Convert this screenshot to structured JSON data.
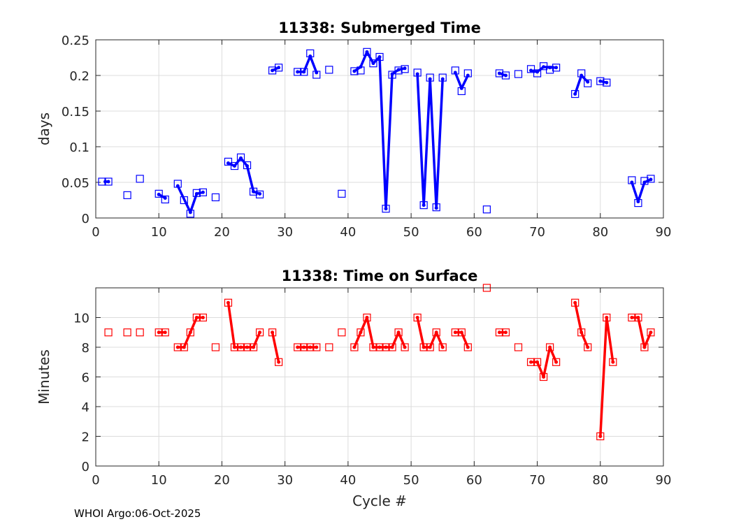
{
  "footer": "WHOI Argo:06-Oct-2025",
  "chart_data": [
    {
      "type": "line",
      "title": "11338: Submerged Time",
      "xlabel": "",
      "ylabel": "days",
      "xlim": [
        0,
        90
      ],
      "ylim": [
        0,
        0.25
      ],
      "xticks": [
        0,
        10,
        20,
        30,
        40,
        50,
        60,
        70,
        80,
        90
      ],
      "yticks": [
        0,
        0.05,
        0.1,
        0.15,
        0.2,
        0.25
      ],
      "ytick_labels": [
        "0",
        "0.05",
        "0.1",
        "0.15",
        "0.2",
        "0.25"
      ],
      "grid": true,
      "color": "#0000ff",
      "markers": [
        [
          1,
          0.051
        ],
        [
          2,
          0.051
        ],
        [
          5,
          0.032
        ],
        [
          7,
          0.055
        ],
        [
          10,
          0.034
        ],
        [
          11,
          0.026
        ],
        [
          13,
          0.048
        ],
        [
          14,
          0.025
        ],
        [
          15,
          0.006
        ],
        [
          16,
          0.035
        ],
        [
          17,
          0.036
        ],
        [
          19,
          0.029
        ],
        [
          21,
          0.079
        ],
        [
          22,
          0.073
        ],
        [
          23,
          0.085
        ],
        [
          24,
          0.074
        ],
        [
          25,
          0.037
        ],
        [
          26,
          0.033
        ],
        [
          28,
          0.207
        ],
        [
          29,
          0.211
        ],
        [
          32,
          0.205
        ],
        [
          33,
          0.205
        ],
        [
          34,
          0.231
        ],
        [
          35,
          0.201
        ],
        [
          37,
          0.208
        ],
        [
          39,
          0.034
        ],
        [
          41,
          0.206
        ],
        [
          42,
          0.207
        ],
        [
          43,
          0.233
        ],
        [
          44,
          0.217
        ],
        [
          45,
          0.226
        ],
        [
          46,
          0.013
        ],
        [
          47,
          0.201
        ],
        [
          48,
          0.207
        ],
        [
          49,
          0.209
        ],
        [
          51,
          0.204
        ],
        [
          52,
          0.018
        ],
        [
          53,
          0.197
        ],
        [
          54,
          0.015
        ],
        [
          55,
          0.197
        ],
        [
          57,
          0.207
        ],
        [
          58,
          0.178
        ],
        [
          59,
          0.203
        ],
        [
          62,
          0.012
        ],
        [
          64,
          0.203
        ],
        [
          65,
          0.2
        ],
        [
          67,
          0.202
        ],
        [
          69,
          0.209
        ],
        [
          70,
          0.203
        ],
        [
          71,
          0.213
        ],
        [
          72,
          0.208
        ],
        [
          73,
          0.211
        ],
        [
          76,
          0.174
        ],
        [
          77,
          0.203
        ],
        [
          78,
          0.189
        ],
        [
          80,
          0.192
        ],
        [
          81,
          0.19
        ],
        [
          85,
          0.053
        ],
        [
          86,
          0.021
        ],
        [
          87,
          0.052
        ],
        [
          88,
          0.055
        ]
      ],
      "segments": [
        [
          [
            1.5,
            0.051
          ],
          [
            2,
            0.051
          ]
        ],
        [
          [
            10,
            0.033
          ],
          [
            11,
            0.028
          ]
        ],
        [
          [
            13,
            0.045
          ],
          [
            15,
            0.008
          ],
          [
            16,
            0.034
          ],
          [
            17,
            0.036
          ]
        ],
        [
          [
            21,
            0.077
          ],
          [
            22,
            0.073
          ],
          [
            23,
            0.084
          ],
          [
            24,
            0.073
          ],
          [
            25,
            0.037
          ],
          [
            26,
            0.034
          ]
        ],
        [
          [
            28,
            0.207
          ],
          [
            29,
            0.211
          ]
        ],
        [
          [
            32,
            0.205
          ],
          [
            33,
            0.205
          ],
          [
            34,
            0.227
          ],
          [
            35,
            0.204
          ]
        ],
        [
          [
            41,
            0.206
          ],
          [
            42,
            0.212
          ],
          [
            43,
            0.233
          ],
          [
            44,
            0.217
          ],
          [
            45,
            0.226
          ],
          [
            46,
            0.013
          ],
          [
            47,
            0.202
          ],
          [
            48,
            0.208
          ],
          [
            49,
            0.21
          ]
        ],
        [
          [
            51,
            0.202
          ],
          [
            52,
            0.018
          ],
          [
            53,
            0.195
          ],
          [
            54,
            0.014
          ],
          [
            55,
            0.195
          ]
        ],
        [
          [
            57,
            0.204
          ],
          [
            58,
            0.182
          ],
          [
            59,
            0.2
          ]
        ],
        [
          [
            64,
            0.203
          ],
          [
            65,
            0.2
          ]
        ],
        [
          [
            69,
            0.207
          ],
          [
            70,
            0.205
          ],
          [
            71,
            0.212
          ],
          [
            72,
            0.211
          ],
          [
            73,
            0.211
          ]
        ],
        [
          [
            76,
            0.174
          ],
          [
            77,
            0.2
          ],
          [
            78,
            0.191
          ]
        ],
        [
          [
            80,
            0.192
          ],
          [
            81,
            0.19
          ]
        ],
        [
          [
            85,
            0.05
          ],
          [
            86,
            0.023
          ],
          [
            87,
            0.05
          ],
          [
            88,
            0.054
          ]
        ]
      ]
    },
    {
      "type": "line",
      "title": "11338: Time on Surface",
      "xlabel": "Cycle #",
      "ylabel": "Minutes",
      "xlim": [
        0,
        90
      ],
      "ylim": [
        0,
        12
      ],
      "xticks": [
        0,
        10,
        20,
        30,
        40,
        50,
        60,
        70,
        80,
        90
      ],
      "yticks": [
        0,
        2,
        4,
        6,
        8,
        10
      ],
      "ytick_labels": [
        "0",
        "2",
        "4",
        "6",
        "8",
        "10"
      ],
      "grid": true,
      "color": "#ff0000",
      "markers": [
        [
          2,
          9
        ],
        [
          5,
          9
        ],
        [
          7,
          9
        ],
        [
          10,
          9
        ],
        [
          11,
          9
        ],
        [
          13,
          8
        ],
        [
          14,
          8
        ],
        [
          15,
          9
        ],
        [
          16,
          10
        ],
        [
          17,
          10
        ],
        [
          19,
          8
        ],
        [
          21,
          11
        ],
        [
          22,
          8
        ],
        [
          23,
          8
        ],
        [
          24,
          8
        ],
        [
          25,
          8
        ],
        [
          26,
          9
        ],
        [
          28,
          9
        ],
        [
          29,
          7
        ],
        [
          32,
          8
        ],
        [
          33,
          8
        ],
        [
          34,
          8
        ],
        [
          35,
          8
        ],
        [
          37,
          8
        ],
        [
          39,
          9
        ],
        [
          41,
          8
        ],
        [
          42,
          9
        ],
        [
          43,
          10
        ],
        [
          44,
          8
        ],
        [
          45,
          8
        ],
        [
          46,
          8
        ],
        [
          47,
          8
        ],
        [
          48,
          9
        ],
        [
          49,
          8
        ],
        [
          51,
          10
        ],
        [
          52,
          8
        ],
        [
          53,
          8
        ],
        [
          54,
          9
        ],
        [
          55,
          8
        ],
        [
          57,
          9
        ],
        [
          58,
          9
        ],
        [
          59,
          8
        ],
        [
          62,
          12
        ],
        [
          64,
          9
        ],
        [
          65,
          9
        ],
        [
          67,
          8
        ],
        [
          69,
          7
        ],
        [
          70,
          7
        ],
        [
          71,
          6
        ],
        [
          72,
          8
        ],
        [
          73,
          7
        ],
        [
          76,
          11
        ],
        [
          77,
          9
        ],
        [
          78,
          8
        ],
        [
          80,
          2
        ],
        [
          81,
          10
        ],
        [
          82,
          7
        ],
        [
          85,
          10
        ],
        [
          86,
          10
        ],
        [
          87,
          8
        ],
        [
          88,
          9
        ]
      ],
      "segments": [
        [
          [
            10,
            9
          ],
          [
            11,
            9
          ]
        ],
        [
          [
            13,
            8
          ],
          [
            14,
            8
          ],
          [
            15,
            9
          ],
          [
            16,
            10
          ],
          [
            17,
            10
          ]
        ],
        [
          [
            21,
            11
          ],
          [
            22,
            8
          ],
          [
            23,
            8
          ],
          [
            24,
            8
          ],
          [
            25,
            8
          ],
          [
            26,
            9
          ]
        ],
        [
          [
            28,
            9
          ],
          [
            29,
            7
          ]
        ],
        [
          [
            32,
            8
          ],
          [
            33,
            8
          ],
          [
            34,
            8
          ],
          [
            35,
            8
          ]
        ],
        [
          [
            41,
            8
          ],
          [
            42,
            9
          ],
          [
            43,
            10
          ],
          [
            44,
            8
          ],
          [
            45,
            8
          ],
          [
            46,
            8
          ],
          [
            47,
            8
          ],
          [
            48,
            9
          ],
          [
            49,
            8
          ]
        ],
        [
          [
            51,
            10
          ],
          [
            52,
            8
          ],
          [
            53,
            8
          ],
          [
            54,
            9
          ],
          [
            55,
            8
          ]
        ],
        [
          [
            57,
            9
          ],
          [
            58,
            9
          ],
          [
            59,
            8
          ]
        ],
        [
          [
            64,
            9
          ],
          [
            65,
            9
          ]
        ],
        [
          [
            69,
            7
          ],
          [
            70,
            7
          ],
          [
            71,
            6
          ],
          [
            72,
            8
          ],
          [
            73,
            7
          ]
        ],
        [
          [
            76,
            11
          ],
          [
            77,
            9
          ],
          [
            78,
            8
          ]
        ],
        [
          [
            80,
            2
          ],
          [
            81,
            10
          ],
          [
            82,
            7
          ]
        ],
        [
          [
            85,
            10
          ],
          [
            86,
            10
          ],
          [
            87,
            8
          ],
          [
            88,
            9
          ]
        ]
      ]
    }
  ]
}
